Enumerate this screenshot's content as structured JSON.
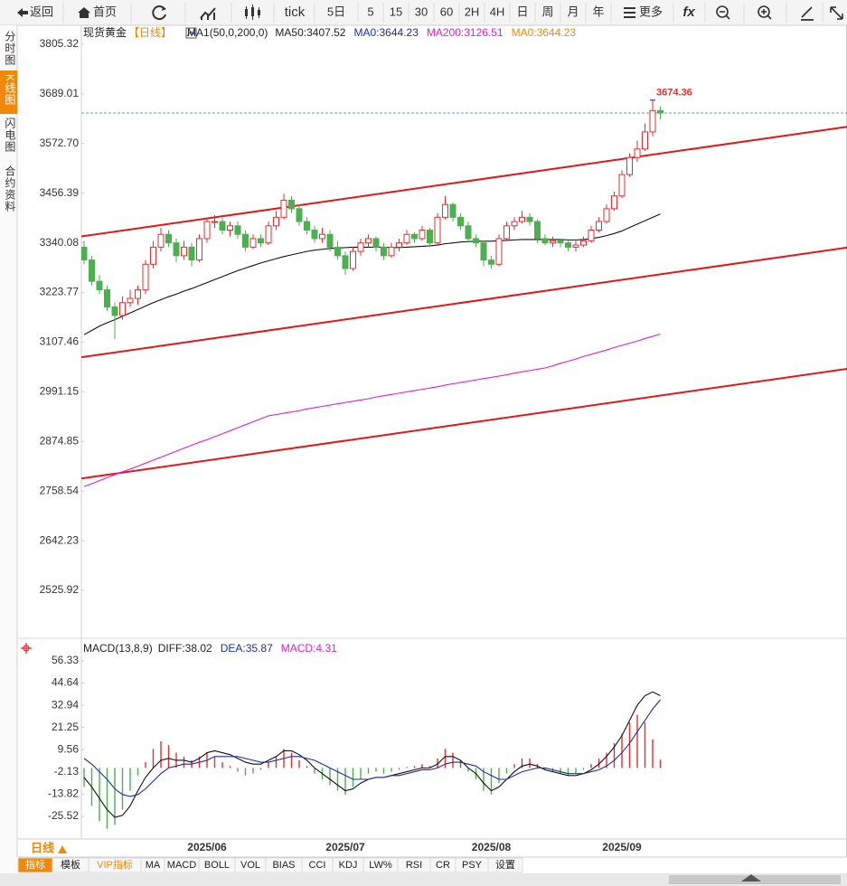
{
  "toolbar": {
    "items": [
      "返回",
      "首页",
      "tick",
      "5日",
      "5",
      "15",
      "30",
      "60",
      "2H",
      "4H",
      "日",
      "周",
      "月",
      "年",
      "更多",
      "fx"
    ]
  },
  "sidebar": [
    "分时图",
    "K线图",
    "闪电图",
    "合约资料"
  ],
  "chart_data": [
    {
      "type": "candlestick",
      "title": "现货黄金",
      "period": "【日线】",
      "indicator": "MA1(50,0,200,0)",
      "legend": [
        {
          "text": "MA50:3407.52",
          "color": "#222222"
        },
        {
          "text": "MA0:3644.23",
          "color": "#1a2fa8"
        },
        {
          "text": "MA200:3126.51",
          "color": "#e020d0"
        },
        {
          "text": "MA0:3644.23",
          "color": "#f0890a"
        }
      ],
      "categories": [
        null,
        null,
        null,
        null,
        null,
        null,
        null,
        null,
        null,
        null,
        null,
        null,
        null,
        null,
        null,
        null,
        "2025/06",
        null,
        null,
        null,
        null,
        null,
        null,
        null,
        null,
        null,
        null,
        null,
        null,
        null,
        null,
        null,
        null,
        null,
        "2025/07",
        null,
        null,
        null,
        null,
        null,
        null,
        null,
        null,
        null,
        null,
        null,
        null,
        null,
        null,
        null,
        null,
        null,
        null,
        "2025/08",
        null,
        null,
        null,
        null,
        null,
        null,
        null,
        null,
        null,
        null,
        null,
        null,
        null,
        null,
        null,
        null,
        "2025/09",
        null,
        null,
        null,
        null,
        null
      ],
      "ohlc": [
        [
          3330,
          3345,
          3290,
          3300
        ],
        [
          3300,
          3310,
          3240,
          3250
        ],
        [
          3250,
          3265,
          3220,
          3230
        ],
        [
          3230,
          3240,
          3180,
          3190
        ],
        [
          3190,
          3200,
          3115,
          3170
        ],
        [
          3170,
          3215,
          3160,
          3200
        ],
        [
          3200,
          3230,
          3190,
          3210
        ],
        [
          3210,
          3240,
          3195,
          3230
        ],
        [
          3230,
          3300,
          3220,
          3290
        ],
        [
          3290,
          3345,
          3280,
          3330
        ],
        [
          3330,
          3375,
          3320,
          3360
        ],
        [
          3360,
          3370,
          3330,
          3340
        ],
        [
          3340,
          3350,
          3295,
          3310
        ],
        [
          3310,
          3345,
          3300,
          3330
        ],
        [
          3330,
          3340,
          3285,
          3300
        ],
        [
          3300,
          3360,
          3295,
          3350
        ],
        [
          3350,
          3400,
          3340,
          3390
        ],
        [
          3390,
          3405,
          3375,
          3390
        ],
        [
          3390,
          3400,
          3360,
          3370
        ],
        [
          3370,
          3390,
          3355,
          3380
        ],
        [
          3380,
          3390,
          3350,
          3360
        ],
        [
          3360,
          3370,
          3320,
          3330
        ],
        [
          3330,
          3360,
          3325,
          3350
        ],
        [
          3350,
          3360,
          3330,
          3340
        ],
        [
          3340,
          3390,
          3335,
          3380
        ],
        [
          3380,
          3415,
          3370,
          3400
        ],
        [
          3400,
          3455,
          3395,
          3440
        ],
        [
          3440,
          3450,
          3410,
          3420
        ],
        [
          3420,
          3430,
          3380,
          3390
        ],
        [
          3390,
          3400,
          3360,
          3370
        ],
        [
          3370,
          3380,
          3340,
          3350
        ],
        [
          3350,
          3375,
          3340,
          3360
        ],
        [
          3360,
          3370,
          3320,
          3330
        ],
        [
          3330,
          3345,
          3300,
          3310
        ],
        [
          3310,
          3320,
          3265,
          3280
        ],
        [
          3280,
          3330,
          3275,
          3320
        ],
        [
          3320,
          3350,
          3310,
          3340
        ],
        [
          3340,
          3360,
          3330,
          3350
        ],
        [
          3350,
          3355,
          3320,
          3330
        ],
        [
          3330,
          3340,
          3300,
          3310
        ],
        [
          3310,
          3340,
          3305,
          3330
        ],
        [
          3330,
          3350,
          3320,
          3340
        ],
        [
          3340,
          3370,
          3335,
          3360
        ],
        [
          3360,
          3365,
          3340,
          3350
        ],
        [
          3350,
          3380,
          3345,
          3370
        ],
        [
          3370,
          3375,
          3330,
          3340
        ],
        [
          3340,
          3410,
          3335,
          3400
        ],
        [
          3400,
          3450,
          3395,
          3430
        ],
        [
          3430,
          3435,
          3390,
          3400
        ],
        [
          3400,
          3410,
          3370,
          3380
        ],
        [
          3380,
          3390,
          3340,
          3350
        ],
        [
          3350,
          3360,
          3330,
          3340
        ],
        [
          3340,
          3345,
          3285,
          3300
        ],
        [
          3300,
          3310,
          3280,
          3290
        ],
        [
          3290,
          3360,
          3285,
          3350
        ],
        [
          3350,
          3390,
          3345,
          3380
        ],
        [
          3380,
          3400,
          3370,
          3390
        ],
        [
          3390,
          3415,
          3385,
          3400
        ],
        [
          3400,
          3410,
          3380,
          3390
        ],
        [
          3390,
          3395,
          3340,
          3350
        ],
        [
          3350,
          3360,
          3335,
          3340
        ],
        [
          3340,
          3355,
          3330,
          3345
        ],
        [
          3345,
          3350,
          3330,
          3340
        ],
        [
          3340,
          3345,
          3320,
          3330
        ],
        [
          3330,
          3345,
          3320,
          3335
        ],
        [
          3335,
          3355,
          3330,
          3345
        ],
        [
          3345,
          3380,
          3340,
          3370
        ],
        [
          3370,
          3400,
          3365,
          3390
        ],
        [
          3390,
          3430,
          3385,
          3420
        ],
        [
          3420,
          3460,
          3415,
          3450
        ],
        [
          3450,
          3510,
          3445,
          3500
        ],
        [
          3500,
          3550,
          3495,
          3540
        ],
        [
          3540,
          3580,
          3530,
          3560
        ],
        [
          3560,
          3620,
          3555,
          3600
        ],
        [
          3600,
          3674.36,
          3590,
          3650
        ],
        [
          3650,
          3660,
          3630,
          3644.23
        ]
      ],
      "up_color": "#e03030",
      "down_color": "#4caf50",
      "series": [
        {
          "color": "#111111",
          "values": [
            3125,
            3135,
            3145,
            3153,
            3160,
            3168,
            3176,
            3184,
            3192,
            3200,
            3207,
            3214,
            3220,
            3227,
            3233,
            3240,
            3247,
            3254,
            3261,
            3268,
            3275,
            3281,
            3287,
            3293,
            3298,
            3303,
            3308,
            3312,
            3316,
            3320,
            3323,
            3325,
            3327,
            3328,
            3329,
            3330,
            3330,
            3330,
            3330,
            3330,
            3329,
            3329,
            3330,
            3331,
            3332,
            3333,
            3335,
            3338,
            3340,
            3342,
            3343,
            3344,
            3344,
            3344,
            3345,
            3346,
            3347,
            3348,
            3348,
            3348,
            3348,
            3348,
            3348,
            3347,
            3347,
            3348,
            3350,
            3353,
            3357,
            3362,
            3368,
            3376,
            3384,
            3392,
            3400,
            3407.52
          ]
        },
        {
          "color": "#e020d0",
          "values": [
            2769,
            2776,
            2783,
            2790,
            2797,
            2804,
            2810,
            2817,
            2824,
            2831,
            2838,
            2845,
            2852,
            2859,
            2866,
            2873,
            2879,
            2886,
            2893,
            2900,
            2907,
            2914,
            2921,
            2928,
            2935,
            2938,
            2941,
            2944,
            2947,
            2951,
            2954,
            2957,
            2960,
            2963,
            2966,
            2969,
            2972,
            2975,
            2979,
            2982,
            2985,
            2988,
            2991,
            2994,
            2997,
            3000,
            3003,
            3007,
            3010,
            3013,
            3016,
            3019,
            3022,
            3025,
            3028,
            3031,
            3035,
            3038,
            3041,
            3044,
            3047,
            3052,
            3058,
            3063,
            3068,
            3074,
            3079,
            3084,
            3089,
            3095,
            3100,
            3105,
            3110,
            3116,
            3121,
            3126.51
          ]
        }
      ],
      "trend_lines": [
        {
          "color": "#e01818",
          "x": [
            -0.4,
            99.3
          ],
          "values": [
            3355,
            3612
          ]
        },
        {
          "color": "#e01818",
          "x": [
            -0.4,
            99.3
          ],
          "values": [
            3072,
            3329
          ]
        },
        {
          "color": "#e01818",
          "x": [
            -0.4,
            99.3
          ],
          "values": [
            2788,
            3045
          ]
        }
      ],
      "last_price": 3644.23,
      "high_label": "3674.36",
      "ylim": [
        2426.5,
        3845.5
      ],
      "yticks": [
        3805.32,
        3689.01,
        {
          "value": 3572.7,
          "label": "3572.70"
        },
        3456.39,
        3340.08,
        3223.77,
        3107.46,
        2991.15,
        2874.85,
        2758.54,
        2642.23,
        2525.92
      ],
      "grid": false
    },
    {
      "type": "macd",
      "title": "MACD(13,8,9)",
      "legend": [
        {
          "text": "DIFF:38.02",
          "color": "#222222"
        },
        {
          "text": "DEA:35.87",
          "color": "#1a2fa8"
        },
        {
          "text": "MACD:4.31",
          "color": "#e020d0"
        }
      ],
      "values": [
        -10,
        -20,
        -28,
        -32,
        -30,
        -22,
        -12,
        -4,
        3,
        10,
        14,
        12,
        8,
        6,
        4,
        6,
        8,
        6,
        3,
        1,
        -2,
        -4,
        -3,
        -1,
        3,
        6,
        10,
        8,
        4,
        1,
        -3,
        -6,
        -9,
        -12,
        -14,
        -10,
        -6,
        -3,
        -2,
        -3,
        -2,
        -1,
        0.5,
        1,
        2,
        1,
        5,
        10,
        8,
        4,
        -2,
        -6,
        -12,
        -14,
        -8,
        -3,
        2,
        5,
        5,
        2,
        -1,
        -2,
        -3,
        -4,
        -3,
        -1,
        2,
        5,
        8,
        13,
        18,
        24,
        28,
        24,
        15,
        4.31
      ],
      "up_color": "#e03030",
      "down_color": "#4caf50",
      "series": [
        {
          "color": "#111111",
          "values": [
            -5,
            -10,
            -16,
            -22,
            -26,
            -25,
            -20,
            -12,
            -5,
            0,
            4,
            5,
            4,
            4,
            3,
            5,
            8,
            9,
            8,
            7,
            5,
            3,
            2,
            2,
            4,
            6,
            9,
            9,
            7,
            4,
            0,
            -3,
            -6,
            -9,
            -12,
            -11,
            -8,
            -6,
            -5,
            -5,
            -4,
            -3,
            -2,
            -1,
            0,
            0,
            2,
            6,
            6,
            4,
            0,
            -3,
            -8,
            -12,
            -10,
            -6,
            -2,
            1,
            2,
            1,
            -1,
            -2,
            -3,
            -4,
            -4,
            -3,
            -1,
            2,
            6,
            11,
            17,
            25,
            33,
            38,
            40,
            38.02
          ]
        },
        {
          "color": "#1a2fa8",
          "values": [
            5,
            2,
            -2,
            -6,
            -11,
            -14,
            -15,
            -14,
            -11,
            -7,
            -3,
            0,
            1,
            2,
            2,
            3,
            4,
            6,
            6,
            6,
            6,
            5,
            4,
            3,
            3,
            4,
            5,
            6,
            6,
            5,
            4,
            2,
            0,
            -2,
            -4,
            -6,
            -6,
            -6,
            -5,
            -5,
            -4,
            -4,
            -3,
            -2,
            -1,
            -1,
            0,
            2,
            3,
            3,
            2,
            1,
            -2,
            -4,
            -6,
            -6,
            -4,
            -2,
            -1,
            0,
            0,
            -1,
            -2,
            -3,
            -3,
            -3,
            -2,
            -1,
            1,
            4,
            8,
            13,
            19,
            25,
            31,
            35.87
          ]
        }
      ],
      "ylim": [
        -37.4,
        60.6
      ],
      "yticks": [
        56.33,
        44.64,
        32.94,
        21.25,
        9.56,
        -2.13,
        -13.82,
        -25.52
      ],
      "grid": false
    }
  ],
  "footer": {
    "period": "日线",
    "tabs": [
      "指标",
      "模板",
      "VIP指标",
      "MA",
      "MACD",
      "BOLL",
      "VOL",
      "BIAS",
      "CCI",
      "KDJ",
      "LW%",
      "RSI",
      "CR",
      "PSY",
      "设置"
    ]
  }
}
